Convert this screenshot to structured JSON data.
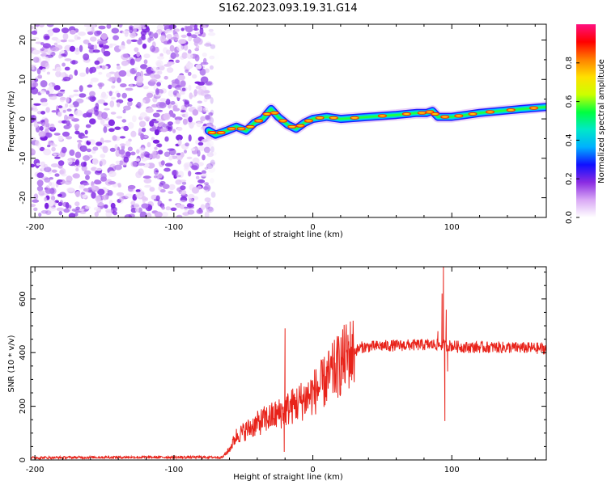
{
  "title": "S162.2023.093.19.31.G14",
  "chart_data": [
    {
      "type": "heatmap",
      "xlabel": "Height of straight line (km)",
      "ylabel": "Frequency (Hz)",
      "xlim": [
        -203,
        168
      ],
      "ylim": [
        -25,
        24
      ],
      "x_ticks": [
        -200,
        -100,
        0,
        100
      ],
      "y_ticks": [
        -20,
        -10,
        0,
        10,
        20
      ],
      "noise_region_x": [
        -203,
        -70
      ],
      "colorbar": {
        "label": "Normalized spectral amplitude",
        "range": [
          0,
          1
        ],
        "ticks": [
          "0.0",
          "0.2",
          "0.4",
          "0.6",
          "0.8"
        ],
        "colors": [
          "#ffffff",
          "#d9a8f5",
          "#8a2be2",
          "#1010ff",
          "#00b0ff",
          "#00e8c8",
          "#00ff40",
          "#ccff00",
          "#ffe000",
          "#ff8000",
          "#ff0000",
          "#ff1080"
        ]
      },
      "ridge": {
        "x": [
          -75,
          -70,
          -62,
          -55,
          -48,
          -42,
          -36,
          -30,
          -25,
          -18,
          -12,
          -6,
          0,
          10,
          20,
          40,
          60,
          75,
          82,
          86,
          90,
          100,
          110,
          120,
          135,
          150,
          168
        ],
        "freq": [
          -3,
          -4,
          -3,
          -2,
          -3,
          -1,
          0,
          2.5,
          0.5,
          -1.5,
          -2.5,
          -1,
          0,
          0.5,
          0,
          0.5,
          1,
          1.5,
          1.5,
          2,
          0.5,
          0.5,
          1,
          1.5,
          2,
          2.5,
          3
        ]
      }
    },
    {
      "type": "line",
      "xlabel": "Height of straight line (km)",
      "ylabel": "SNR (10 * v/v)",
      "xlim": [
        -203,
        168
      ],
      "ylim": [
        0,
        720
      ],
      "x_ticks": [
        -200,
        -100,
        0,
        100
      ],
      "y_ticks": [
        0,
        200,
        400,
        600
      ],
      "color": "#e8231a",
      "envelope": {
        "x": [
          -203,
          -150,
          -100,
          -65,
          -60,
          -55,
          -45,
          -35,
          -25,
          -15,
          -5,
          5,
          15,
          25,
          35,
          50,
          70,
          90,
          110,
          130,
          150,
          168
        ],
        "snr": [
          8,
          10,
          10,
          10,
          40,
          90,
          120,
          150,
          170,
          200,
          230,
          270,
          330,
          390,
          420,
          425,
          428,
          430,
          420,
          420,
          418,
          415
        ]
      },
      "spikes": [
        {
          "x": -20,
          "snr": 490
        },
        {
          "x": -20.6,
          "snr": 30
        },
        {
          "x": 90,
          "snr": 480
        },
        {
          "x": 93,
          "snr": 620
        },
        {
          "x": 94,
          "snr": 720
        },
        {
          "x": 95,
          "snr": 145
        },
        {
          "x": 96,
          "snr": 560
        },
        {
          "x": 97,
          "snr": 330
        }
      ]
    }
  ]
}
